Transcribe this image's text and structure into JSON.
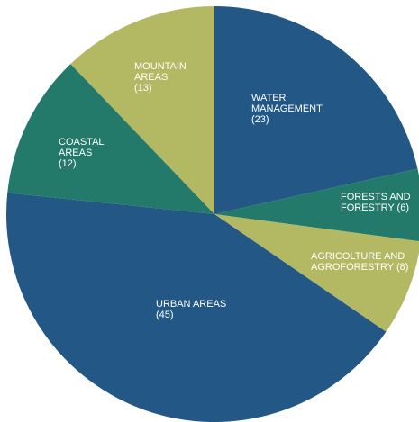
{
  "chart_data": {
    "type": "pie",
    "start_angle_deg": 0,
    "direction": "clockwise",
    "slices": [
      {
        "name": "WATER MANAGEMENT",
        "value": 23,
        "label_lines": [
          "WATER",
          "MANAGEMENT",
          "(23)"
        ],
        "color": "#225786"
      },
      {
        "name": "FORESTS AND FORESTRY",
        "value": 6,
        "label_lines": [
          "FORESTS AND",
          "FORESTRY (6)"
        ],
        "color": "#237a6a"
      },
      {
        "name": "AGRICOLTURE AND AGROFORESTRY",
        "value": 8,
        "label_lines": [
          "AGRICOLTURE AND",
          "AGROFORESTRY (8)"
        ],
        "color": "#b3b862"
      },
      {
        "name": "URBAN AREAS",
        "value": 45,
        "label_lines": [
          "URBAN AREAS",
          "(45)"
        ],
        "color": "#225786"
      },
      {
        "name": "COASTAL AREAS",
        "value": 12,
        "label_lines": [
          "COASTAL",
          "AREAS",
          "(12)"
        ],
        "color": "#237a6a"
      },
      {
        "name": "MOUNTAIN AREAS",
        "value": 13,
        "label_lines": [
          "MOUNTAIN",
          "AREAS",
          "(13)"
        ],
        "color": "#b3b862"
      }
    ]
  }
}
